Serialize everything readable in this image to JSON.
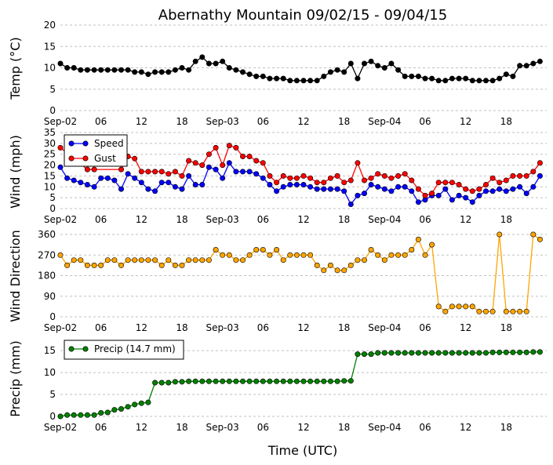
{
  "title": "Abernathy Mountain 09/02/15 - 09/04/15",
  "xlabel": "Time (UTC)",
  "x_tick_labels": [
    "Sep-02",
    "06",
    "12",
    "18",
    "Sep-03",
    "06",
    "12",
    "18",
    "Sep-04",
    "06",
    "12",
    "18"
  ],
  "x_tick_hours": [
    0,
    6,
    12,
    18,
    24,
    30,
    36,
    42,
    48,
    54,
    60,
    66
  ],
  "x_range_hours": [
    0,
    72
  ],
  "colors": {
    "temp": "#000000",
    "speed": "#0000ff",
    "gust": "#ff0000",
    "direction": "#ffa500",
    "precip": "#008000",
    "grid": "#c0c0c0"
  },
  "chart_data": [
    {
      "type": "line",
      "id": "temp",
      "ylabel": "Temp (°C)",
      "ylim": [
        0,
        20
      ],
      "yticks": [
        0,
        5,
        10,
        15,
        20
      ],
      "series": [
        {
          "name": "Temp",
          "color": "#000000",
          "x": [
            0,
            1,
            2,
            3,
            4,
            5,
            6,
            7,
            8,
            9,
            10,
            11,
            12,
            13,
            14,
            15,
            16,
            17,
            18,
            19,
            20,
            21,
            22,
            23,
            24,
            25,
            26,
            27,
            28,
            29,
            30,
            31,
            32,
            33,
            34,
            35,
            36,
            37,
            38,
            39,
            40,
            41,
            42,
            43,
            44,
            45,
            46,
            47,
            48,
            49,
            50,
            51,
            52,
            53,
            54,
            55,
            56,
            57,
            58,
            59,
            60,
            61,
            62,
            63,
            64,
            65,
            66,
            67,
            68,
            69,
            70,
            71
          ],
          "values": [
            11.0,
            10.0,
            10.0,
            9.5,
            9.5,
            9.5,
            9.5,
            9.5,
            9.5,
            9.5,
            9.5,
            9.0,
            9.0,
            8.5,
            9.0,
            9.0,
            9.0,
            9.5,
            10.0,
            9.5,
            11.5,
            12.5,
            11.0,
            11.0,
            11.5,
            10.0,
            9.5,
            9.0,
            8.5,
            8.0,
            8.0,
            7.5,
            7.5,
            7.5,
            7.0,
            7.0,
            7.0,
            7.0,
            7.0,
            8.0,
            9.0,
            9.5,
            9.0,
            11.0,
            7.5,
            11.0,
            11.5,
            10.5,
            10.0,
            11.0,
            9.5,
            8.0,
            8.0,
            8.0,
            7.5,
            7.5,
            7.0,
            7.0,
            7.5,
            7.5,
            7.5,
            7.0,
            7.0,
            7.0,
            7.0,
            7.5,
            8.5,
            8.0,
            10.5,
            10.5,
            11.0,
            11.5
          ]
        }
      ]
    },
    {
      "type": "line",
      "id": "wind",
      "ylabel": "Wind (mph)",
      "ylim": [
        0,
        35
      ],
      "yticks": [
        0,
        5,
        10,
        15,
        20,
        25,
        30,
        35
      ],
      "legend": "top-left",
      "series": [
        {
          "name": "Speed",
          "color": "#0000ff",
          "x": [
            0,
            1,
            2,
            3,
            4,
            5,
            6,
            7,
            8,
            9,
            10,
            11,
            12,
            13,
            14,
            15,
            16,
            17,
            18,
            19,
            20,
            21,
            22,
            23,
            24,
            25,
            26,
            27,
            28,
            29,
            30,
            31,
            32,
            33,
            34,
            35,
            36,
            37,
            38,
            39,
            40,
            41,
            42,
            43,
            44,
            45,
            46,
            47,
            48,
            49,
            50,
            51,
            52,
            53,
            54,
            55,
            56,
            57,
            58,
            59,
            60,
            61,
            62,
            63,
            64,
            65,
            66,
            67,
            68,
            69,
            70,
            71
          ],
          "values": [
            19,
            14,
            13,
            12,
            11,
            10,
            14,
            14,
            13,
            9,
            16,
            14,
            12,
            9,
            8,
            12,
            12,
            10,
            9,
            15,
            11,
            11,
            19,
            18,
            14,
            21,
            17,
            17,
            17,
            16,
            14,
            11,
            8,
            10,
            11,
            11,
            11,
            10,
            9,
            9,
            9,
            9,
            8,
            2,
            6,
            7,
            11,
            10,
            9,
            8,
            10,
            10,
            8,
            3,
            4,
            6,
            6,
            9,
            4,
            6,
            5,
            3,
            6,
            8,
            8,
            9,
            8,
            9,
            10,
            7,
            10,
            15
          ]
        },
        {
          "name": "Gust",
          "color": "#ff0000",
          "x": [
            0,
            4,
            5,
            9,
            10,
            11,
            12,
            13,
            14,
            15,
            16,
            17,
            18,
            19,
            20,
            21,
            22,
            23,
            24,
            25,
            26,
            27,
            28,
            29,
            30,
            31,
            32,
            33,
            34,
            35,
            36,
            37,
            38,
            39,
            40,
            41,
            42,
            43,
            44,
            45,
            46,
            47,
            48,
            49,
            50,
            51,
            52,
            53,
            54,
            55,
            56,
            57,
            58,
            59,
            60,
            61,
            62,
            63,
            64,
            65,
            66,
            67,
            68,
            69,
            70,
            71
          ],
          "values": [
            28,
            18,
            18,
            18,
            24,
            23,
            17,
            17,
            17,
            17,
            16,
            17,
            15,
            22,
            21,
            20,
            25,
            28,
            20,
            29,
            28,
            24,
            24,
            22,
            21,
            15,
            12,
            15,
            14,
            14,
            15,
            14,
            12,
            12,
            14,
            15,
            12,
            13,
            21,
            13,
            14,
            16,
            15,
            14,
            15,
            16,
            13,
            9,
            6,
            7,
            12,
            12,
            12,
            11,
            9,
            8,
            9,
            11,
            14,
            12,
            13,
            15,
            15,
            15,
            17,
            21
          ]
        }
      ]
    },
    {
      "type": "line",
      "id": "direction",
      "ylabel": "Wind Direction",
      "ylim": [
        0,
        360
      ],
      "yticks": [
        0,
        90,
        180,
        270,
        360
      ],
      "series": [
        {
          "name": "Direction",
          "color": "#ffa500",
          "x": [
            0,
            1,
            2,
            3,
            4,
            5,
            6,
            7,
            8,
            9,
            10,
            11,
            12,
            13,
            14,
            15,
            16,
            17,
            18,
            19,
            20,
            21,
            22,
            23,
            24,
            25,
            26,
            27,
            28,
            29,
            30,
            31,
            32,
            33,
            34,
            35,
            36,
            37,
            38,
            39,
            40,
            41,
            42,
            43,
            44,
            45,
            46,
            47,
            48,
            49,
            50,
            51,
            52,
            53,
            54,
            55,
            56,
            57,
            58,
            59,
            60,
            61,
            62,
            63,
            64,
            65,
            66,
            67,
            68,
            69,
            70,
            71
          ],
          "values": [
            270,
            225,
            248,
            248,
            225,
            225,
            225,
            248,
            248,
            225,
            248,
            248,
            248,
            248,
            248,
            225,
            248,
            225,
            225,
            248,
            248,
            248,
            248,
            293,
            270,
            270,
            248,
            248,
            270,
            293,
            293,
            270,
            293,
            248,
            270,
            270,
            270,
            270,
            225,
            203,
            225,
            203,
            203,
            225,
            248,
            248,
            293,
            270,
            248,
            270,
            270,
            270,
            293,
            338,
            270,
            315,
            45,
            23,
            45,
            45,
            45,
            45,
            23,
            23,
            23,
            360,
            23,
            23,
            23,
            23,
            360,
            338
          ]
        }
      ]
    },
    {
      "type": "line",
      "id": "precip",
      "ylabel": "Precip (mm)",
      "ylim": [
        0,
        17
      ],
      "yticks": [
        0,
        5,
        10,
        15
      ],
      "legend": "top-left",
      "series": [
        {
          "name": "Precip (14.7 mm)",
          "color": "#008000",
          "x": [
            0,
            1,
            2,
            3,
            4,
            5,
            6,
            7,
            8,
            9,
            10,
            11,
            12,
            13,
            14,
            15,
            16,
            17,
            18,
            19,
            20,
            21,
            22,
            23,
            24,
            25,
            26,
            27,
            28,
            29,
            30,
            31,
            32,
            33,
            34,
            35,
            36,
            37,
            38,
            39,
            40,
            41,
            42,
            43,
            44,
            45,
            46,
            47,
            48,
            49,
            50,
            51,
            52,
            53,
            54,
            55,
            56,
            57,
            58,
            59,
            60,
            61,
            62,
            63,
            64,
            65,
            66,
            67,
            68,
            69,
            70,
            71
          ],
          "values": [
            0.0,
            0.3,
            0.3,
            0.3,
            0.3,
            0.3,
            0.8,
            0.9,
            1.5,
            1.7,
            2.2,
            2.7,
            3.0,
            3.2,
            7.7,
            7.7,
            7.7,
            7.9,
            7.9,
            8.0,
            8.0,
            8.0,
            8.0,
            8.0,
            8.0,
            8.0,
            8.0,
            8.0,
            8.0,
            8.0,
            8.0,
            8.0,
            8.0,
            8.0,
            8.0,
            8.0,
            8.0,
            8.0,
            8.0,
            8.0,
            8.0,
            8.0,
            8.1,
            8.1,
            14.2,
            14.2,
            14.2,
            14.5,
            14.5,
            14.5,
            14.5,
            14.5,
            14.5,
            14.5,
            14.5,
            14.5,
            14.5,
            14.5,
            14.5,
            14.5,
            14.5,
            14.5,
            14.5,
            14.5,
            14.6,
            14.6,
            14.6,
            14.6,
            14.6,
            14.6,
            14.7,
            14.7
          ]
        }
      ]
    }
  ]
}
